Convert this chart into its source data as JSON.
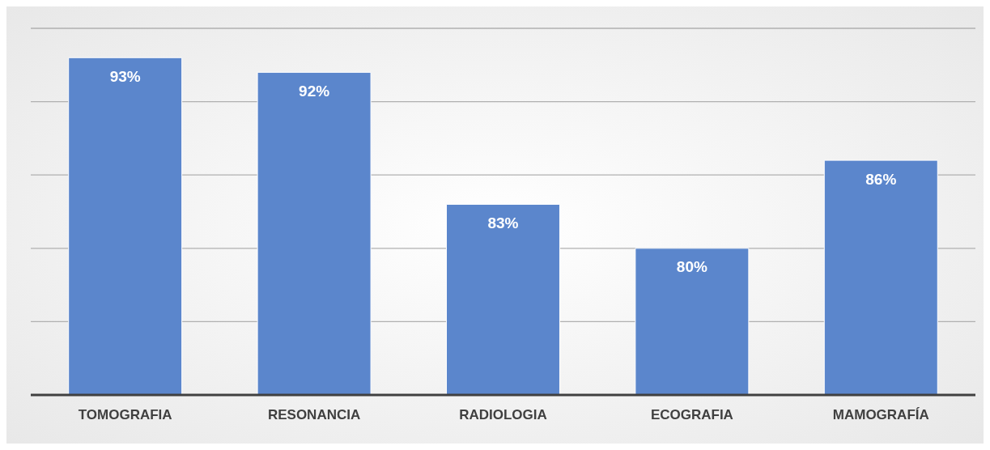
{
  "chart_data": {
    "type": "bar",
    "categories": [
      "TOMOGRAFIA",
      "RESONANCIA",
      "RADIOLOGIA",
      "ECOGRAFIA",
      "MAMOGRAFÍA"
    ],
    "values": [
      93,
      92,
      83,
      80,
      86
    ],
    "color": "#5b86cc",
    "value_labels": [
      "93%",
      "92%",
      "83%",
      "80%",
      "86%"
    ],
    "ylim": [
      70,
      95
    ],
    "yticks": [
      {
        "value": 70,
        "label": null
      },
      {
        "value": 75,
        "label": null
      },
      {
        "value": 80,
        "label": null
      },
      {
        "value": 85,
        "label": null
      },
      {
        "value": 90,
        "label": null
      },
      {
        "value": 95,
        "label": null
      }
    ],
    "grid": "y",
    "tick_labels": "x"
  }
}
